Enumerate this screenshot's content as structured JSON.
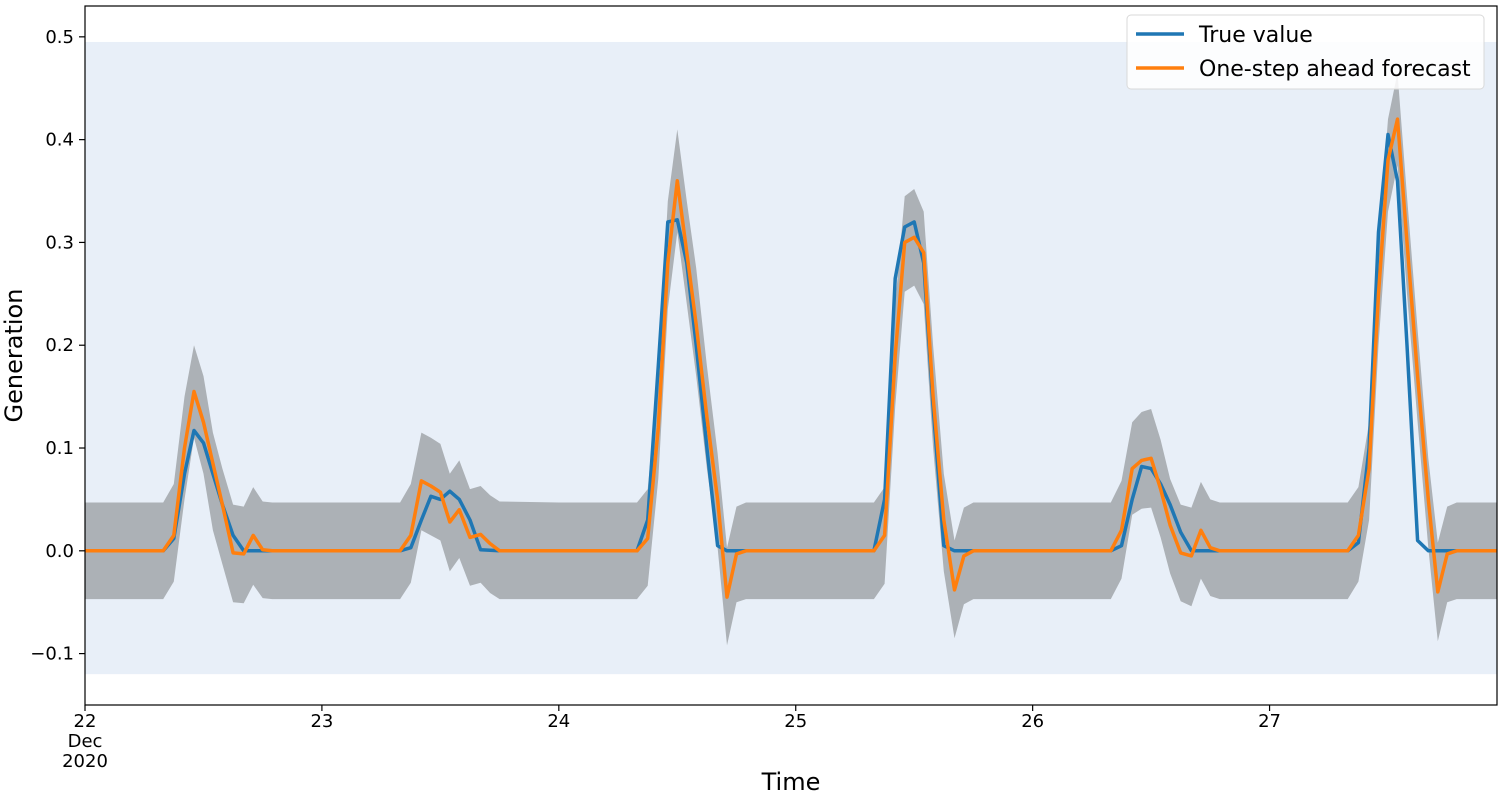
{
  "chart_data": {
    "type": "line",
    "xlabel": "Time",
    "ylabel": "Generation",
    "x_tick_labels": [
      {
        "day": "22",
        "month": "Dec",
        "year": "2020",
        "x": 0
      },
      {
        "day": "23",
        "x": 1
      },
      {
        "day": "24",
        "x": 2
      },
      {
        "day": "25",
        "x": 3
      },
      {
        "day": "26",
        "x": 4
      },
      {
        "day": "27",
        "x": 5
      }
    ],
    "y_ticks": [
      -0.1,
      0.0,
      0.1,
      0.2,
      0.3,
      0.4,
      0.5
    ],
    "y_tick_labels": [
      "−0.1",
      "0.0",
      "0.1",
      "0.2",
      "0.3",
      "0.4",
      "0.5"
    ],
    "xlim": [
      0,
      5.96
    ],
    "ylim": [
      -0.15,
      0.53
    ],
    "legend_position": "top-right",
    "background_band": {
      "y0": -0.12,
      "y1": 0.495,
      "color": "#e8eff8"
    },
    "confidence_band_color": "#acb1b6",
    "series": [
      {
        "name": "True value",
        "color": "#1f77b4",
        "points": [
          [
            0,
            0
          ],
          [
            0.33,
            0
          ],
          [
            0.375,
            0.012
          ],
          [
            0.42,
            0.075
          ],
          [
            0.46,
            0.117
          ],
          [
            0.5,
            0.105
          ],
          [
            0.54,
            0.075
          ],
          [
            0.58,
            0.045
          ],
          [
            0.625,
            0.015
          ],
          [
            0.67,
            0
          ],
          [
            0.75,
            0
          ],
          [
            1,
            0
          ],
          [
            1.33,
            0
          ],
          [
            1.375,
            0.003
          ],
          [
            1.42,
            0.03
          ],
          [
            1.46,
            0.053
          ],
          [
            1.5,
            0.05
          ],
          [
            1.54,
            0.058
          ],
          [
            1.58,
            0.05
          ],
          [
            1.625,
            0.03
          ],
          [
            1.67,
            0.001
          ],
          [
            1.75,
            0
          ],
          [
            2,
            0
          ],
          [
            2.33,
            0
          ],
          [
            2.375,
            0.03
          ],
          [
            2.42,
            0.18
          ],
          [
            2.46,
            0.32
          ],
          [
            2.5,
            0.322
          ],
          [
            2.54,
            0.28
          ],
          [
            2.58,
            0.2
          ],
          [
            2.625,
            0.1
          ],
          [
            2.67,
            0.005
          ],
          [
            2.71,
            0
          ],
          [
            2.75,
            0
          ],
          [
            3,
            0
          ],
          [
            3.33,
            0
          ],
          [
            3.375,
            0.05
          ],
          [
            3.42,
            0.265
          ],
          [
            3.46,
            0.315
          ],
          [
            3.5,
            0.32
          ],
          [
            3.54,
            0.28
          ],
          [
            3.58,
            0.14
          ],
          [
            3.625,
            0.005
          ],
          [
            3.67,
            0
          ],
          [
            3.75,
            0
          ],
          [
            4,
            0
          ],
          [
            4.33,
            0
          ],
          [
            4.375,
            0.005
          ],
          [
            4.42,
            0.05
          ],
          [
            4.46,
            0.082
          ],
          [
            4.5,
            0.08
          ],
          [
            4.54,
            0.065
          ],
          [
            4.58,
            0.045
          ],
          [
            4.625,
            0.018
          ],
          [
            4.67,
            0
          ],
          [
            4.75,
            0
          ],
          [
            5,
            0
          ],
          [
            5.33,
            0
          ],
          [
            5.375,
            0.008
          ],
          [
            5.42,
            0.1
          ],
          [
            5.46,
            0.31
          ],
          [
            5.5,
            0.405
          ],
          [
            5.54,
            0.36
          ],
          [
            5.58,
            0.2
          ],
          [
            5.625,
            0.01
          ],
          [
            5.67,
            0
          ],
          [
            5.75,
            0
          ],
          [
            5.96,
            0
          ]
        ]
      },
      {
        "name": "One-step ahead forecast",
        "color": "#ff7f0e",
        "points": [
          [
            0,
            0
          ],
          [
            0.33,
            0
          ],
          [
            0.375,
            0.015
          ],
          [
            0.42,
            0.1
          ],
          [
            0.46,
            0.155
          ],
          [
            0.5,
            0.125
          ],
          [
            0.54,
            0.085
          ],
          [
            0.58,
            0.045
          ],
          [
            0.625,
            -0.002
          ],
          [
            0.67,
            -0.003
          ],
          [
            0.71,
            0.015
          ],
          [
            0.75,
            0.001
          ],
          [
            0.79,
            0
          ],
          [
            1,
            0
          ],
          [
            1.33,
            0
          ],
          [
            1.375,
            0.015
          ],
          [
            1.42,
            0.068
          ],
          [
            1.46,
            0.063
          ],
          [
            1.5,
            0.057
          ],
          [
            1.54,
            0.028
          ],
          [
            1.58,
            0.04
          ],
          [
            1.625,
            0.013
          ],
          [
            1.67,
            0.016
          ],
          [
            1.71,
            0.007
          ],
          [
            1.75,
            0
          ],
          [
            2,
            0
          ],
          [
            2.33,
            0
          ],
          [
            2.375,
            0.012
          ],
          [
            2.42,
            0.12
          ],
          [
            2.46,
            0.28
          ],
          [
            2.5,
            0.36
          ],
          [
            2.54,
            0.29
          ],
          [
            2.58,
            0.22
          ],
          [
            2.625,
            0.13
          ],
          [
            2.67,
            0.05
          ],
          [
            2.71,
            -0.045
          ],
          [
            2.75,
            -0.003
          ],
          [
            2.79,
            0
          ],
          [
            3,
            0
          ],
          [
            3.33,
            0
          ],
          [
            3.375,
            0.015
          ],
          [
            3.42,
            0.19
          ],
          [
            3.46,
            0.3
          ],
          [
            3.5,
            0.305
          ],
          [
            3.54,
            0.29
          ],
          [
            3.58,
            0.15
          ],
          [
            3.625,
            0.03
          ],
          [
            3.67,
            -0.038
          ],
          [
            3.71,
            -0.005
          ],
          [
            3.75,
            0
          ],
          [
            4,
            0
          ],
          [
            4.33,
            0
          ],
          [
            4.375,
            0.02
          ],
          [
            4.42,
            0.08
          ],
          [
            4.46,
            0.088
          ],
          [
            4.5,
            0.09
          ],
          [
            4.54,
            0.06
          ],
          [
            4.58,
            0.025
          ],
          [
            4.625,
            -0.002
          ],
          [
            4.67,
            -0.005
          ],
          [
            4.71,
            0.02
          ],
          [
            4.75,
            0.003
          ],
          [
            4.79,
            0
          ],
          [
            5,
            0
          ],
          [
            5.33,
            0
          ],
          [
            5.375,
            0.015
          ],
          [
            5.42,
            0.08
          ],
          [
            5.46,
            0.25
          ],
          [
            5.5,
            0.38
          ],
          [
            5.54,
            0.42
          ],
          [
            5.58,
            0.3
          ],
          [
            5.625,
            0.17
          ],
          [
            5.67,
            0.05
          ],
          [
            5.71,
            -0.04
          ],
          [
            5.75,
            -0.003
          ],
          [
            5.79,
            0
          ],
          [
            5.96,
            0
          ]
        ]
      }
    ],
    "confidence_interval": {
      "upper": [
        [
          0,
          0.047
        ],
        [
          0.33,
          0.047
        ],
        [
          0.375,
          0.065
        ],
        [
          0.42,
          0.15
        ],
        [
          0.46,
          0.2
        ],
        [
          0.5,
          0.17
        ],
        [
          0.54,
          0.115
        ],
        [
          0.58,
          0.08
        ],
        [
          0.625,
          0.045
        ],
        [
          0.67,
          0.043
        ],
        [
          0.71,
          0.062
        ],
        [
          0.75,
          0.048
        ],
        [
          0.79,
          0.047
        ],
        [
          1,
          0.047
        ],
        [
          1.33,
          0.047
        ],
        [
          1.375,
          0.065
        ],
        [
          1.42,
          0.115
        ],
        [
          1.46,
          0.11
        ],
        [
          1.5,
          0.104
        ],
        [
          1.54,
          0.075
        ],
        [
          1.58,
          0.088
        ],
        [
          1.625,
          0.06
        ],
        [
          1.67,
          0.063
        ],
        [
          1.71,
          0.054
        ],
        [
          1.75,
          0.048
        ],
        [
          2,
          0.047
        ],
        [
          2.33,
          0.047
        ],
        [
          2.375,
          0.06
        ],
        [
          2.42,
          0.17
        ],
        [
          2.46,
          0.34
        ],
        [
          2.5,
          0.41
        ],
        [
          2.54,
          0.34
        ],
        [
          2.58,
          0.275
        ],
        [
          2.625,
          0.18
        ],
        [
          2.67,
          0.095
        ],
        [
          2.71,
          0.003
        ],
        [
          2.75,
          0.043
        ],
        [
          2.79,
          0.047
        ],
        [
          3,
          0.047
        ],
        [
          3.33,
          0.047
        ],
        [
          3.375,
          0.062
        ],
        [
          3.42,
          0.24
        ],
        [
          3.46,
          0.345
        ],
        [
          3.5,
          0.352
        ],
        [
          3.54,
          0.33
        ],
        [
          3.58,
          0.2
        ],
        [
          3.625,
          0.075
        ],
        [
          3.67,
          0.01
        ],
        [
          3.71,
          0.042
        ],
        [
          3.75,
          0.047
        ],
        [
          4,
          0.047
        ],
        [
          4.33,
          0.047
        ],
        [
          4.375,
          0.068
        ],
        [
          4.42,
          0.125
        ],
        [
          4.46,
          0.135
        ],
        [
          4.5,
          0.138
        ],
        [
          4.54,
          0.108
        ],
        [
          4.58,
          0.07
        ],
        [
          4.625,
          0.045
        ],
        [
          4.67,
          0.042
        ],
        [
          4.71,
          0.067
        ],
        [
          4.75,
          0.05
        ],
        [
          4.79,
          0.047
        ],
        [
          5,
          0.047
        ],
        [
          5.33,
          0.047
        ],
        [
          5.375,
          0.062
        ],
        [
          5.42,
          0.125
        ],
        [
          5.46,
          0.3
        ],
        [
          5.5,
          0.42
        ],
        [
          5.54,
          0.465
        ],
        [
          5.58,
          0.345
        ],
        [
          5.625,
          0.215
        ],
        [
          5.67,
          0.09
        ],
        [
          5.71,
          0.008
        ],
        [
          5.75,
          0.043
        ],
        [
          5.79,
          0.047
        ],
        [
          5.96,
          0.047
        ]
      ],
      "lower": [
        [
          0,
          -0.047
        ],
        [
          0.33,
          -0.047
        ],
        [
          0.375,
          -0.03
        ],
        [
          0.42,
          0.05
        ],
        [
          0.46,
          0.11
        ],
        [
          0.5,
          0.075
        ],
        [
          0.54,
          0.02
        ],
        [
          0.58,
          -0.013
        ],
        [
          0.625,
          -0.05
        ],
        [
          0.67,
          -0.051
        ],
        [
          0.71,
          -0.033
        ],
        [
          0.75,
          -0.046
        ],
        [
          0.79,
          -0.047
        ],
        [
          1,
          -0.047
        ],
        [
          1.33,
          -0.047
        ],
        [
          1.375,
          -0.031
        ],
        [
          1.42,
          0.02
        ],
        [
          1.46,
          0.015
        ],
        [
          1.5,
          0.01
        ],
        [
          1.54,
          -0.02
        ],
        [
          1.58,
          -0.007
        ],
        [
          1.625,
          -0.034
        ],
        [
          1.67,
          -0.031
        ],
        [
          1.71,
          -0.041
        ],
        [
          1.75,
          -0.047
        ],
        [
          2,
          -0.047
        ],
        [
          2.33,
          -0.047
        ],
        [
          2.375,
          -0.034
        ],
        [
          2.42,
          0.07
        ],
        [
          2.46,
          0.235
        ],
        [
          2.5,
          0.31
        ],
        [
          2.54,
          0.24
        ],
        [
          2.58,
          0.17
        ],
        [
          2.625,
          0.08
        ],
        [
          2.67,
          0.003
        ],
        [
          2.71,
          -0.092
        ],
        [
          2.75,
          -0.05
        ],
        [
          2.79,
          -0.047
        ],
        [
          3,
          -0.047
        ],
        [
          3.33,
          -0.047
        ],
        [
          3.375,
          -0.032
        ],
        [
          3.42,
          0.14
        ],
        [
          3.46,
          0.252
        ],
        [
          3.5,
          0.258
        ],
        [
          3.54,
          0.24
        ],
        [
          3.58,
          0.1
        ],
        [
          3.625,
          -0.02
        ],
        [
          3.67,
          -0.085
        ],
        [
          3.71,
          -0.052
        ],
        [
          3.75,
          -0.047
        ],
        [
          4,
          -0.047
        ],
        [
          4.33,
          -0.047
        ],
        [
          4.375,
          -0.027
        ],
        [
          4.42,
          0.035
        ],
        [
          4.46,
          0.041
        ],
        [
          4.5,
          0.042
        ],
        [
          4.54,
          0.013
        ],
        [
          4.58,
          -0.022
        ],
        [
          4.625,
          -0.049
        ],
        [
          4.67,
          -0.054
        ],
        [
          4.71,
          -0.027
        ],
        [
          4.75,
          -0.044
        ],
        [
          4.79,
          -0.047
        ],
        [
          5,
          -0.047
        ],
        [
          5.33,
          -0.047
        ],
        [
          5.375,
          -0.03
        ],
        [
          5.42,
          0.03
        ],
        [
          5.46,
          0.2
        ],
        [
          5.5,
          0.33
        ],
        [
          5.54,
          0.375
        ],
        [
          5.58,
          0.25
        ],
        [
          5.625,
          0.125
        ],
        [
          5.67,
          0.003
        ],
        [
          5.71,
          -0.088
        ],
        [
          5.75,
          -0.05
        ],
        [
          5.79,
          -0.047
        ],
        [
          5.96,
          -0.047
        ]
      ]
    }
  }
}
